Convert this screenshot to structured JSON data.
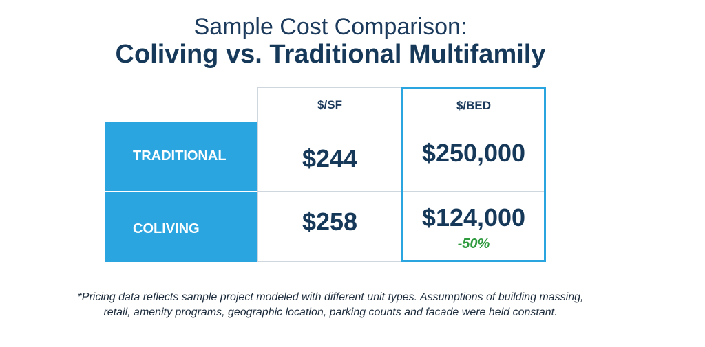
{
  "title": {
    "line1": "Sample Cost Comparison:",
    "line2": "Coliving vs. Traditional Multifamily"
  },
  "chart_data": {
    "type": "table",
    "columns": [
      "$/SF",
      "$/BED"
    ],
    "rows": [
      {
        "label": "TRADITIONAL",
        "sf": "$244",
        "bed": "$250,000",
        "note": ""
      },
      {
        "label": "COLIVING",
        "sf": "$258",
        "bed": "$124,000",
        "note": "-50%"
      }
    ],
    "values": {
      "TRADITIONAL": {
        "per_sf": 244,
        "per_bed": 250000
      },
      "COLIVING": {
        "per_sf": 258,
        "per_bed": 124000
      }
    },
    "highlighted_column": "$/BED"
  },
  "footnote": {
    "line1": "*Pricing data reflects sample project modeled with different unit types. Assumptions of building massing,",
    "line2": "retail, amenity programs, geographic location, parking counts and facade were held constant."
  },
  "colors": {
    "row_label_bg": "#2aa5e0",
    "highlight_border": "#2aa5e0",
    "value_text": "#163859",
    "delta_text": "#2e9a3e"
  }
}
